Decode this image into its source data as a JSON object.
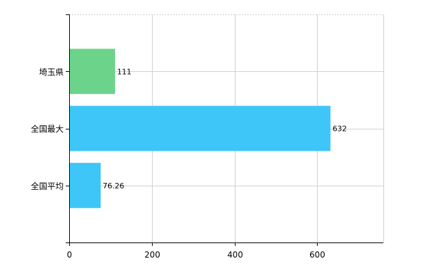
{
  "chart_data": {
    "type": "bar",
    "orientation": "horizontal",
    "categories": [
      "埼玉県",
      "全国最大",
      "全国平均"
    ],
    "values": [
      111,
      632,
      76.26
    ],
    "value_labels": [
      "111",
      "632",
      "76.26"
    ],
    "bar_colors": [
      "#6cd48a",
      "#3ec6f8",
      "#3ec6f8"
    ],
    "title": "",
    "xlabel": "",
    "ylabel": "",
    "xlim": [
      0,
      760
    ],
    "x_ticks": [
      0,
      200,
      400,
      600
    ],
    "x_tick_labels": [
      "0",
      "200",
      "400",
      "600"
    ],
    "grid": true,
    "legend": "none"
  }
}
